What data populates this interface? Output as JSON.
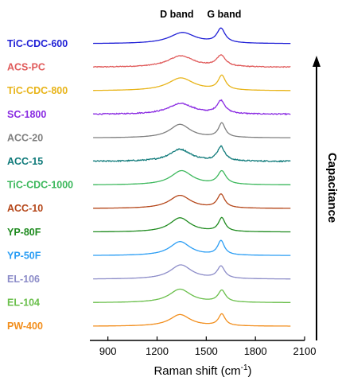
{
  "chart_data": {
    "type": "line",
    "xlabel": "Raman shift (cm",
    "xlabel_sup": "-1",
    "xlabel_close": ")",
    "xlim": [
      790,
      2100
    ],
    "xticks": [
      900,
      1200,
      1500,
      1800,
      2100
    ],
    "xtick_labels": [
      "900",
      "1200",
      "1500",
      "1800",
      "2100"
    ],
    "peak_labels": [
      {
        "text": "D band",
        "x": 1340
      },
      {
        "text": "G band",
        "x": 1590
      }
    ],
    "side_label": "Capacitance",
    "series": [
      {
        "name": "TiC-CDC-600",
        "color": "#1f1fd6",
        "d_pos": 1355,
        "g_pos": 1590,
        "d_height": 0.78,
        "g_height": 1.0,
        "d_width": 120,
        "g_width": 55,
        "noise": 0.0
      },
      {
        "name": "ACS-PC",
        "color": "#e05a5a",
        "d_pos": 1345,
        "g_pos": 1590,
        "d_height": 0.8,
        "g_height": 0.78,
        "d_width": 120,
        "g_width": 60,
        "noise": 0.04
      },
      {
        "name": "TiC-CDC-800",
        "color": "#e8b419",
        "d_pos": 1345,
        "g_pos": 1595,
        "d_height": 0.9,
        "g_height": 1.0,
        "d_width": 120,
        "g_width": 50,
        "noise": 0.0
      },
      {
        "name": "SC-1800",
        "color": "#8a2be2",
        "d_pos": 1345,
        "g_pos": 1590,
        "d_height": 0.75,
        "g_height": 0.9,
        "d_width": 120,
        "g_width": 55,
        "noise": 0.05
      },
      {
        "name": "ACC-20",
        "color": "#7f7f7f",
        "d_pos": 1340,
        "g_pos": 1595,
        "d_height": 0.95,
        "g_height": 1.0,
        "d_width": 95,
        "g_width": 45,
        "noise": 0.0
      },
      {
        "name": "ACC-15",
        "color": "#0f7a7a",
        "d_pos": 1340,
        "g_pos": 1590,
        "d_height": 0.85,
        "g_height": 1.0,
        "d_width": 100,
        "g_width": 50,
        "noise": 0.06
      },
      {
        "name": "TiC-CDC-1000",
        "color": "#3cb85c",
        "d_pos": 1350,
        "g_pos": 1595,
        "d_height": 1.0,
        "g_height": 0.92,
        "d_width": 100,
        "g_width": 55,
        "noise": 0.0
      },
      {
        "name": "ACC-10",
        "color": "#b5471a",
        "d_pos": 1340,
        "g_pos": 1590,
        "d_height": 0.92,
        "g_height": 0.95,
        "d_width": 100,
        "g_width": 50,
        "noise": 0.0
      },
      {
        "name": "YP-80F",
        "color": "#1f8b1f",
        "d_pos": 1340,
        "g_pos": 1595,
        "d_height": 1.0,
        "g_height": 0.95,
        "d_width": 95,
        "g_width": 45,
        "noise": 0.0
      },
      {
        "name": "YP-50F",
        "color": "#2a9df4",
        "d_pos": 1340,
        "g_pos": 1590,
        "d_height": 0.98,
        "g_height": 1.0,
        "d_width": 95,
        "g_width": 45,
        "noise": 0.0
      },
      {
        "name": "EL-106",
        "color": "#8c8cc8",
        "d_pos": 1345,
        "g_pos": 1590,
        "d_height": 1.0,
        "g_height": 0.85,
        "d_width": 100,
        "g_width": 50,
        "noise": 0.0
      },
      {
        "name": "EL-104",
        "color": "#6abf4b",
        "d_pos": 1340,
        "g_pos": 1595,
        "d_height": 0.95,
        "g_height": 0.82,
        "d_width": 100,
        "g_width": 50,
        "noise": 0.0
      },
      {
        "name": "PW-400",
        "color": "#f28e1c",
        "d_pos": 1340,
        "g_pos": 1595,
        "d_height": 0.82,
        "g_height": 0.82,
        "d_width": 95,
        "g_width": 45,
        "noise": 0.0
      }
    ]
  }
}
